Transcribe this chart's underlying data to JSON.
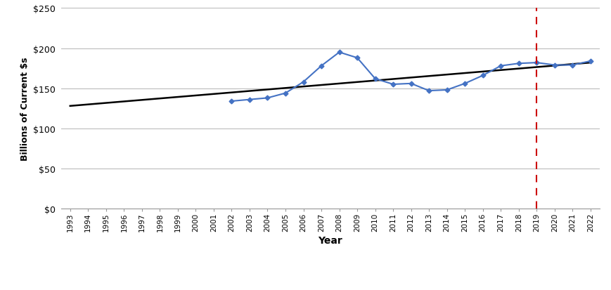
{
  "xlabel": "Year",
  "ylabel": "Billions of Current $s",
  "years": [
    2002,
    2003,
    2004,
    2005,
    2006,
    2007,
    2008,
    2009,
    2010,
    2011,
    2012,
    2013,
    2014,
    2015,
    2016,
    2017,
    2018,
    2019,
    2020,
    2021,
    2022
  ],
  "values": [
    134,
    136,
    138,
    144,
    158,
    178,
    195,
    188,
    162,
    155,
    156,
    147,
    148,
    156,
    166,
    178,
    181,
    182,
    179,
    179,
    184
  ],
  "trend_x": [
    1993,
    2022
  ],
  "trend_y": [
    128,
    182
  ],
  "dashed_line_x": 2019,
  "xmin": 1993,
  "xmax": 2022,
  "ymin": 0,
  "ymax": 250,
  "yticks": [
    0,
    50,
    100,
    150,
    200,
    250
  ],
  "all_xtick_years": [
    1993,
    1994,
    1995,
    1996,
    1997,
    1998,
    1999,
    2000,
    2001,
    2002,
    2003,
    2004,
    2005,
    2006,
    2007,
    2008,
    2009,
    2010,
    2011,
    2012,
    2013,
    2014,
    2015,
    2016,
    2017,
    2018,
    2019,
    2020,
    2021,
    2022
  ],
  "line_color": "#4472C4",
  "trend_color": "#000000",
  "dashed_color": "#CC0000",
  "marker": "D",
  "marker_size": 3.5,
  "background_color": "#ffffff",
  "grid_color": "#bbbbbb"
}
